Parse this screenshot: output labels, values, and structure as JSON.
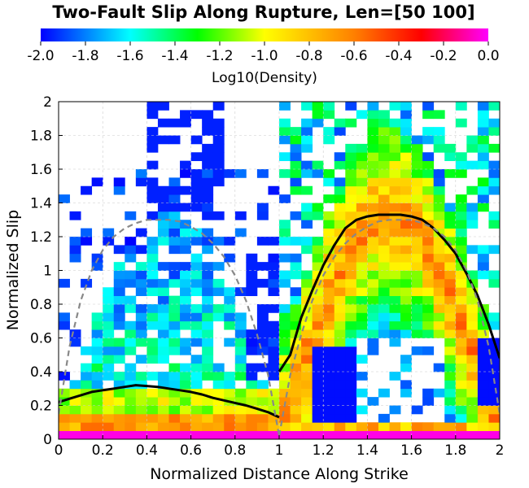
{
  "chart_data": {
    "type": "heatmap",
    "title": "Two-Fault Slip Along Rupture, Len=[50 100]",
    "xlabel": "Normalized Distance Along Strike",
    "ylabel": "Normalized Slip",
    "xlim": [
      0,
      2
    ],
    "ylim": [
      0,
      2
    ],
    "x_ticks": [
      "0",
      "0.2",
      "0.4",
      "0.6",
      "0.8",
      "1",
      "1.2",
      "1.4",
      "1.6",
      "1.8",
      "2"
    ],
    "y_ticks": [
      "0",
      "0.2",
      "0.4",
      "0.6",
      "0.8",
      "1",
      "1.2",
      "1.4",
      "1.6",
      "1.8",
      "2"
    ],
    "grid": true,
    "colorbar": {
      "label": "Log10(Density)",
      "range": [
        -2.0,
        0.0
      ],
      "ticks": [
        "-2.0",
        "-1.8",
        "-1.6",
        "-1.4",
        "-1.2",
        "-1.0",
        "-0.8",
        "-0.6",
        "-0.4",
        "-0.2",
        "0.0"
      ],
      "colors": [
        "#0000ff",
        "#00ffff",
        "#00ff00",
        "#ffff00",
        "#ff8000",
        "#ff0000",
        "#ff00ff"
      ],
      "placement": "top"
    },
    "heatmap_grid": {
      "nx": 40,
      "ny": 40,
      "dx": 0.05,
      "dy": 0.05,
      "min_value": -2.0,
      "max_value": 0.0,
      "description_of_density": "log10 density of normalized slip vs. normalized distance along strike"
    },
    "series": [
      {
        "style": "solid-black",
        "x": [
          0.0,
          0.05,
          0.1,
          0.15,
          0.2,
          0.25,
          0.3,
          0.35,
          0.4,
          0.45,
          0.5,
          0.55,
          0.6,
          0.65,
          0.7,
          0.75,
          0.8,
          0.85,
          0.9,
          0.95,
          1.0
        ],
        "values": [
          0.22,
          0.24,
          0.26,
          0.28,
          0.29,
          0.3,
          0.31,
          0.32,
          0.315,
          0.31,
          0.3,
          0.29,
          0.28,
          0.265,
          0.245,
          0.23,
          0.215,
          0.2,
          0.18,
          0.16,
          0.13
        ]
      },
      {
        "style": "solid-black",
        "x": [
          1.0,
          1.05,
          1.1,
          1.15,
          1.2,
          1.25,
          1.3,
          1.35,
          1.4,
          1.45,
          1.5,
          1.55,
          1.6,
          1.65,
          1.7,
          1.75,
          1.8,
          1.85,
          1.9,
          1.95,
          2.0
        ],
        "values": [
          0.4,
          0.5,
          0.72,
          0.88,
          1.03,
          1.15,
          1.25,
          1.3,
          1.32,
          1.33,
          1.33,
          1.33,
          1.32,
          1.3,
          1.25,
          1.18,
          1.1,
          0.98,
          0.85,
          0.68,
          0.48
        ]
      },
      {
        "style": "dashed-gray",
        "x": [
          0.0,
          0.05,
          0.1,
          0.15,
          0.2,
          0.25,
          0.3,
          0.35,
          0.4,
          0.45,
          0.5,
          0.55,
          0.6,
          0.65,
          0.7,
          0.75,
          0.8,
          0.85,
          0.9,
          0.95,
          1.0
        ],
        "values": [
          0.15,
          0.55,
          0.82,
          1.0,
          1.12,
          1.2,
          1.25,
          1.28,
          1.3,
          1.3,
          1.3,
          1.29,
          1.26,
          1.22,
          1.16,
          1.08,
          0.97,
          0.82,
          0.62,
          0.38,
          0.02
        ]
      },
      {
        "style": "dashed-gray",
        "x": [
          1.0,
          1.05,
          1.1,
          1.15,
          1.2,
          1.25,
          1.3,
          1.35,
          1.4,
          1.45,
          1.5,
          1.55,
          1.6,
          1.65,
          1.7,
          1.75,
          1.8,
          1.85,
          1.9,
          1.95,
          2.0
        ],
        "values": [
          0.02,
          0.38,
          0.62,
          0.82,
          0.97,
          1.08,
          1.16,
          1.22,
          1.26,
          1.29,
          1.3,
          1.3,
          1.3,
          1.28,
          1.25,
          1.2,
          1.12,
          1.0,
          0.82,
          0.55,
          0.15
        ]
      }
    ]
  }
}
